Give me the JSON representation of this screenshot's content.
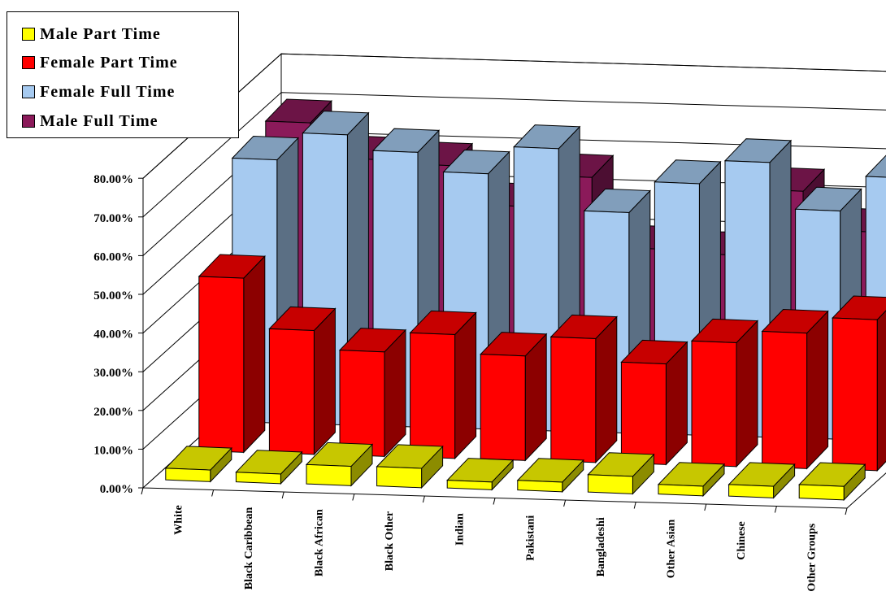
{
  "colors": {
    "male_part_time": "#ffff00",
    "female_part_time": "#ff0000",
    "female_full_time": "#a6caf0",
    "male_full_time": "#8b1a5a"
  },
  "legend": [
    {
      "label": "Male Part Time",
      "color": "#ffff00"
    },
    {
      "label": "Female Part Time",
      "color": "#ff0000"
    },
    {
      "label": "Female Full Time",
      "color": "#a6caf0"
    },
    {
      "label": "Male Full Time",
      "color": "#8b1a5a"
    }
  ],
  "chart_data": {
    "type": "bar",
    "categories": [
      "White",
      "Black Caribbean",
      "Black African",
      "Black Other",
      "Indian",
      "Pakistani",
      "Bangladeshi",
      "Other Asian",
      "Chinese",
      "Other Groups"
    ],
    "series": [
      {
        "name": "Male Part Time",
        "values": [
          3,
          2.5,
          5,
          5,
          2,
          2.5,
          4.5,
          2.5,
          3,
          3.5
        ]
      },
      {
        "name": "Female Part Time",
        "values": [
          45,
          32,
          27,
          32,
          27,
          32,
          26,
          32,
          35,
          39
        ]
      },
      {
        "name": "Female Full Time",
        "values": [
          68,
          75,
          71,
          66,
          73,
          57,
          65,
          71,
          59,
          68
        ]
      },
      {
        "name": "Male Full Time",
        "values": [
          70,
          61,
          60,
          50,
          58,
          40,
          39,
          56,
          46,
          57
        ]
      }
    ],
    "yticks": [
      "0.00%",
      "10.00%",
      "20.00%",
      "30.00%",
      "40.00%",
      "50.00%",
      "60.00%",
      "70.00%",
      "80.00%"
    ],
    "ylim": [
      0,
      80
    ],
    "grid": true,
    "legend_position": "top-left"
  }
}
